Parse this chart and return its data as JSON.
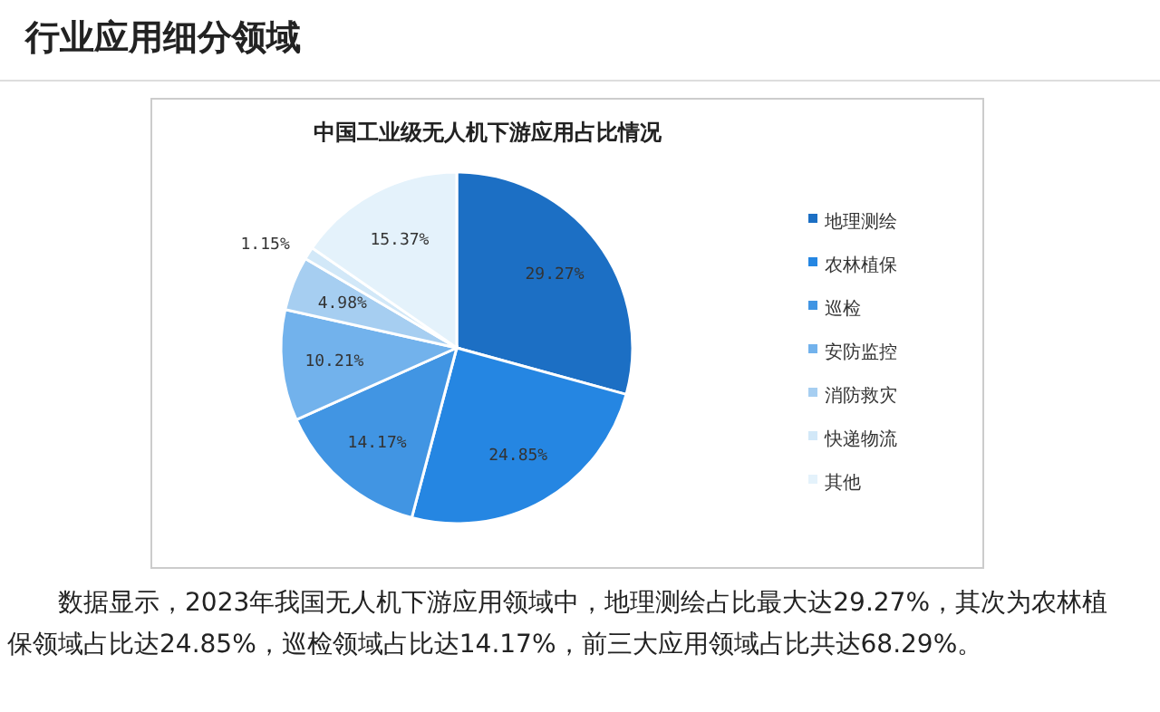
{
  "chart_data": {
    "type": "pie",
    "title": "中国工业级无人机下游应用占比情况",
    "subtitle": "行业应用细分领域",
    "categories": [
      "地理测绘",
      "农林植保",
      "巡检",
      "安防监控",
      "消防救灾",
      "快递物流",
      "其他"
    ],
    "values": [
      29.27,
      24.85,
      14.17,
      10.21,
      4.98,
      1.15,
      15.37
    ],
    "value_labels": [
      "29.27%",
      "24.85%",
      "14.17%",
      "10.21%",
      "4.98%",
      "1.15%",
      "15.37%"
    ],
    "colors": [
      "#1c6fc4",
      "#2586e2",
      "#4195e3",
      "#72b2ec",
      "#a6cef1",
      "#d2e8f8",
      "#e4f2fb"
    ],
    "legend": "right",
    "annotations": [
      "数据显示，2023年我国无人机下游应用领域中，地理测绘占比最大达29.27%，其次为农林植保领域占比达24.85%，巡检领域占比达14.17%，前三大应用领域占比共达68.29%。"
    ]
  }
}
